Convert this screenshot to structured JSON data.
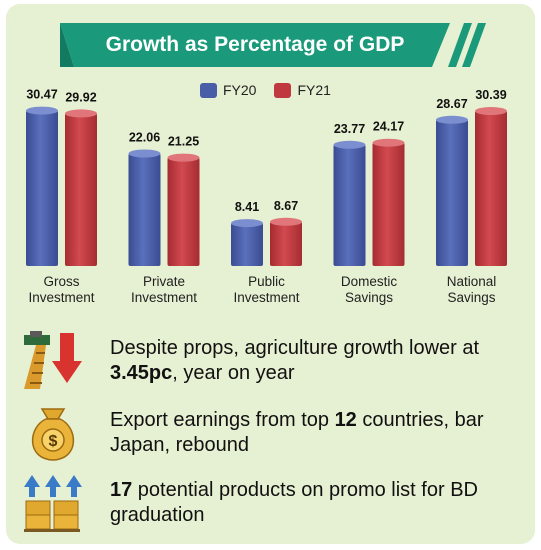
{
  "banner": {
    "title": "Growth as Percentage of GDP"
  },
  "colors": {
    "fy20": "#4a5ea8",
    "fy21": "#c0393e",
    "banner": "#1a9a7a",
    "background": "#e6f0d2"
  },
  "chart_data": {
    "type": "bar",
    "title": "Growth as Percentage of GDP",
    "categories": [
      [
        "Gross",
        "Investment"
      ],
      [
        "Private",
        "Investment"
      ],
      [
        "Public",
        "Investment"
      ],
      [
        "Domestic",
        "Savings"
      ],
      [
        "National",
        "Savings"
      ]
    ],
    "series": [
      {
        "name": "FY20",
        "values": [
          30.47,
          22.06,
          8.41,
          23.77,
          28.67
        ]
      },
      {
        "name": "FY21",
        "values": [
          29.92,
          21.25,
          8.67,
          24.17,
          30.39
        ]
      }
    ],
    "value_labels": [
      [
        "30.47",
        "22.06",
        "8.41",
        "23.77",
        "28.67"
      ],
      [
        "29.92",
        "21.25",
        "8.67",
        "24.17",
        "30.39"
      ]
    ],
    "legend_position": "top-center",
    "grid": false
  },
  "statements": [
    {
      "icon": "agriculture-decline-icon",
      "pre": "Despite props, agriculture growth lower at ",
      "bold": "3.45pc",
      "post": ", year on year"
    },
    {
      "icon": "money-bag-icon",
      "pre": "Export earnings from top ",
      "bold": "12",
      "post": " countries, bar Japan, rebound"
    },
    {
      "icon": "export-boxes-icon",
      "pre": "",
      "bold": "17",
      "post": " potential products on promo list for BD graduation"
    }
  ]
}
